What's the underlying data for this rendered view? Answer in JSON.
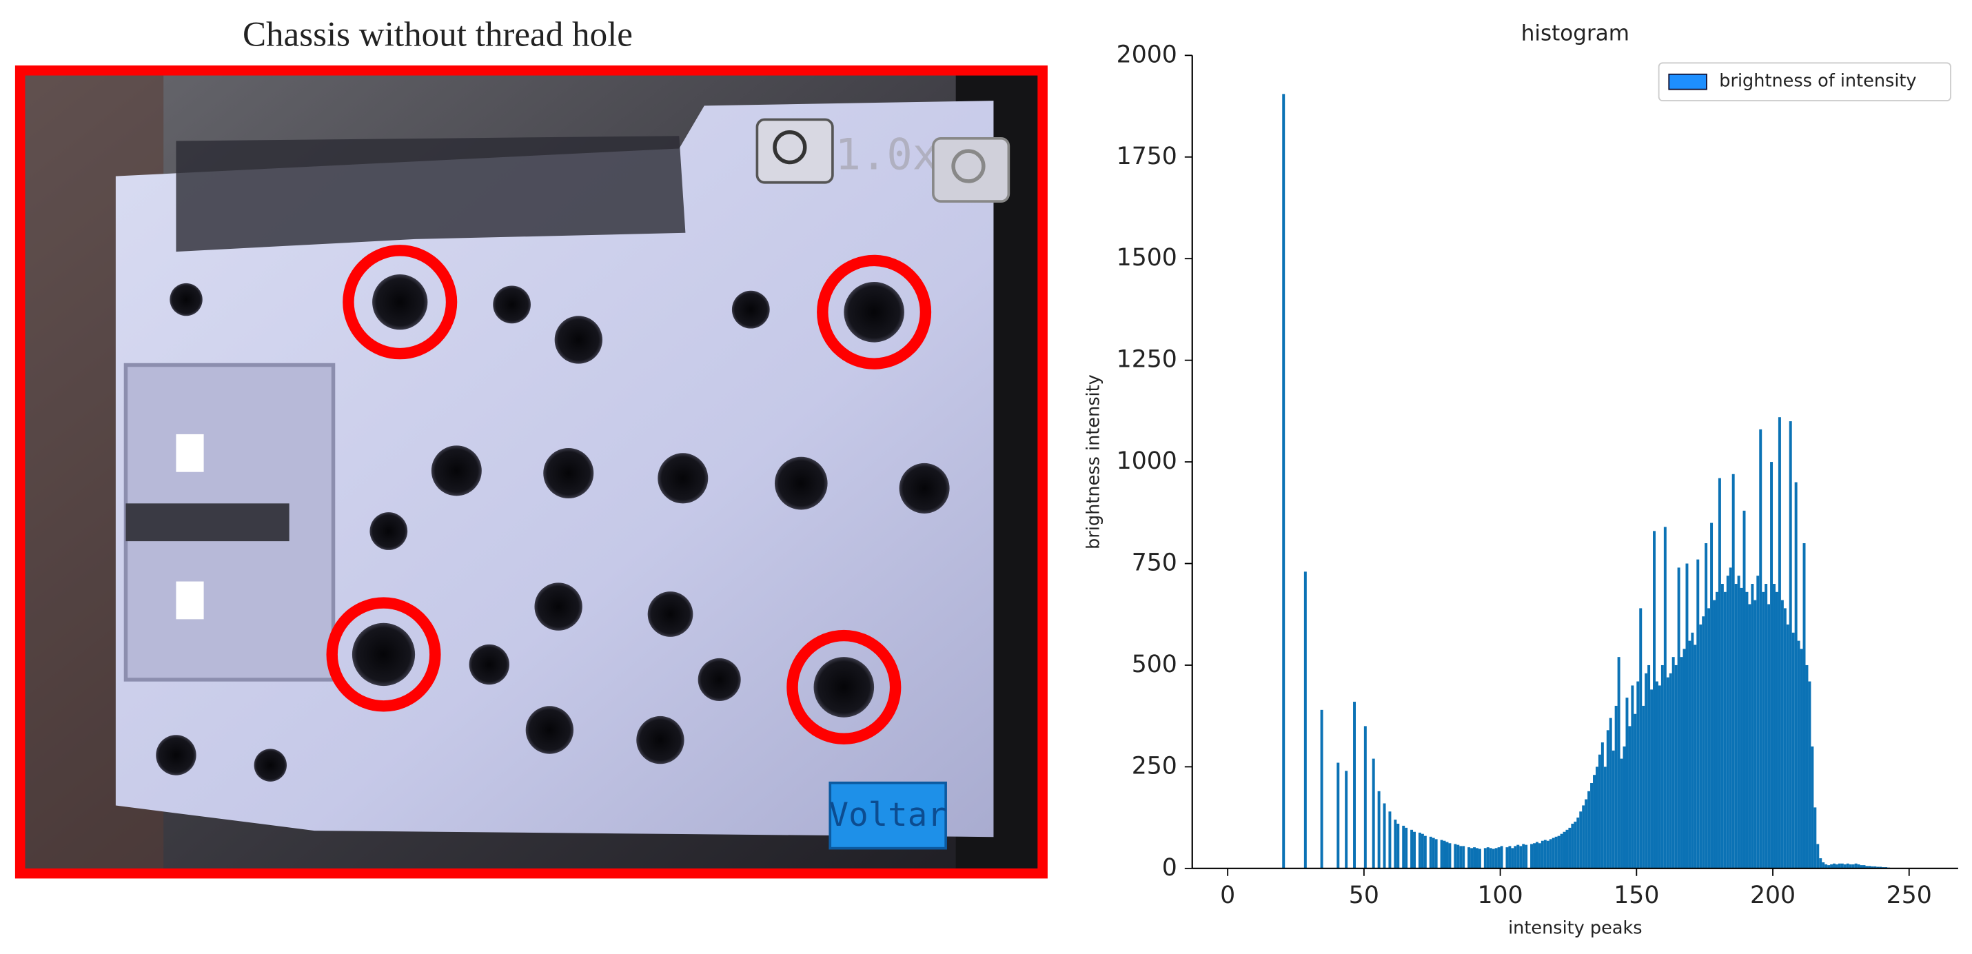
{
  "photo": {
    "caption": "Chassis without thread hole",
    "zoom_label": "1.0x",
    "button_label": "Voltar"
  },
  "chart_data": {
    "type": "histogram",
    "title": "histogram",
    "xlabel": "intensity peaks",
    "ylabel": "brightness intensity",
    "bins": [
      0,
      1,
      2,
      3,
      4,
      5,
      6,
      7,
      8,
      9,
      10,
      11,
      12,
      13,
      14,
      15,
      16,
      17,
      18,
      19,
      20,
      21,
      22,
      23,
      24,
      25,
      26,
      27,
      28,
      29,
      30,
      31,
      32,
      33,
      34,
      35,
      36,
      37,
      38,
      39,
      40,
      41,
      42,
      43,
      44,
      45,
      46,
      47,
      48,
      49,
      50,
      51,
      52,
      53,
      54,
      55,
      56,
      57,
      58,
      59,
      60,
      61,
      62,
      63,
      64,
      65,
      66,
      67,
      68,
      69,
      70,
      71,
      72,
      73,
      74,
      75,
      76,
      77,
      78,
      79,
      80,
      81,
      82,
      83,
      84,
      85,
      86,
      87,
      88,
      89,
      90,
      91,
      92,
      93,
      94,
      95,
      96,
      97,
      98,
      99,
      100,
      101,
      102,
      103,
      104,
      105,
      106,
      107,
      108,
      109,
      110,
      111,
      112,
      113,
      114,
      115,
      116,
      117,
      118,
      119,
      120,
      121,
      122,
      123,
      124,
      125,
      126,
      127,
      128,
      129,
      130,
      131,
      132,
      133,
      134,
      135,
      136,
      137,
      138,
      139,
      140,
      141,
      142,
      143,
      144,
      145,
      146,
      147,
      148,
      149,
      150,
      151,
      152,
      153,
      154,
      155,
      156,
      157,
      158,
      159,
      160,
      161,
      162,
      163,
      164,
      165,
      166,
      167,
      168,
      169,
      170,
      171,
      172,
      173,
      174,
      175,
      176,
      177,
      178,
      179,
      180,
      181,
      182,
      183,
      184,
      185,
      186,
      187,
      188,
      189,
      190,
      191,
      192,
      193,
      194,
      195,
      196,
      197,
      198,
      199,
      200,
      201,
      202,
      203,
      204,
      205,
      206,
      207,
      208,
      209,
      210,
      211,
      212,
      213,
      214,
      215,
      216,
      217,
      218,
      219,
      220,
      221,
      222,
      223,
      224,
      225,
      226,
      227,
      228,
      229,
      230,
      231,
      232,
      233,
      234,
      235,
      236,
      237,
      238,
      239,
      240,
      241,
      242,
      243,
      244,
      245,
      246,
      247,
      248,
      249,
      250,
      251,
      252,
      253,
      254,
      255,
      256
    ],
    "series": [
      {
        "name": "brightness of intensity",
        "color": "#0b72b5",
        "legend_color": "#1e8fff",
        "values": [
          0,
          0,
          0,
          0,
          0,
          0,
          0,
          0,
          0,
          0,
          0,
          0,
          0,
          0,
          0,
          0,
          0,
          0,
          0,
          0,
          1905,
          0,
          0,
          0,
          0,
          0,
          0,
          0,
          730,
          0,
          0,
          0,
          0,
          0,
          390,
          0,
          0,
          0,
          0,
          0,
          260,
          0,
          0,
          240,
          0,
          0,
          410,
          0,
          0,
          0,
          350,
          0,
          0,
          270,
          0,
          190,
          0,
          160,
          0,
          140,
          0,
          120,
          110,
          0,
          105,
          100,
          0,
          95,
          90,
          0,
          88,
          85,
          80,
          0,
          78,
          75,
          72,
          0,
          70,
          68,
          65,
          62,
          0,
          60,
          58,
          55,
          55,
          0,
          52,
          50,
          52,
          50,
          48,
          0,
          50,
          52,
          50,
          48,
          50,
          52,
          55,
          0,
          52,
          55,
          50,
          55,
          58,
          55,
          60,
          58,
          0,
          60,
          62,
          65,
          62,
          68,
          70,
          68,
          72,
          75,
          78,
          80,
          85,
          90,
          95,
          100,
          110,
          115,
          125,
          140,
          155,
          170,
          190,
          210,
          230,
          250,
          280,
          310,
          250,
          340,
          370,
          290,
          400,
          520,
          270,
          300,
          420,
          350,
          450,
          380,
          460,
          640,
          400,
          480,
          500,
          440,
          830,
          460,
          450,
          500,
          840,
          470,
          480,
          520,
          500,
          740,
          520,
          540,
          750,
          560,
          580,
          550,
          760,
          600,
          620,
          800,
          640,
          850,
          660,
          680,
          960,
          700,
          680,
          720,
          740,
          970,
          700,
          720,
          690,
          880,
          680,
          650,
          700,
          660,
          720,
          1080,
          680,
          700,
          650,
          1000,
          700,
          680,
          1110,
          660,
          640,
          600,
          1100,
          580,
          950,
          560,
          540,
          800,
          500,
          460,
          300,
          150,
          60,
          25,
          15,
          10,
          8,
          10,
          12,
          10,
          12,
          12,
          10,
          12,
          10,
          10,
          12,
          10,
          8,
          8,
          6,
          6,
          5,
          5,
          4,
          4,
          3,
          3,
          2,
          0,
          0,
          0,
          0,
          0,
          0,
          0,
          0,
          0,
          0,
          0,
          0,
          0
        ]
      }
    ],
    "xlim": [
      -13,
      268
    ],
    "ylim": [
      0,
      2000
    ],
    "xticks": [
      0,
      50,
      100,
      150,
      200,
      250
    ],
    "yticks": [
      0,
      250,
      500,
      750,
      1000,
      1250,
      1500,
      1750,
      2000
    ],
    "legend": "upper right"
  }
}
